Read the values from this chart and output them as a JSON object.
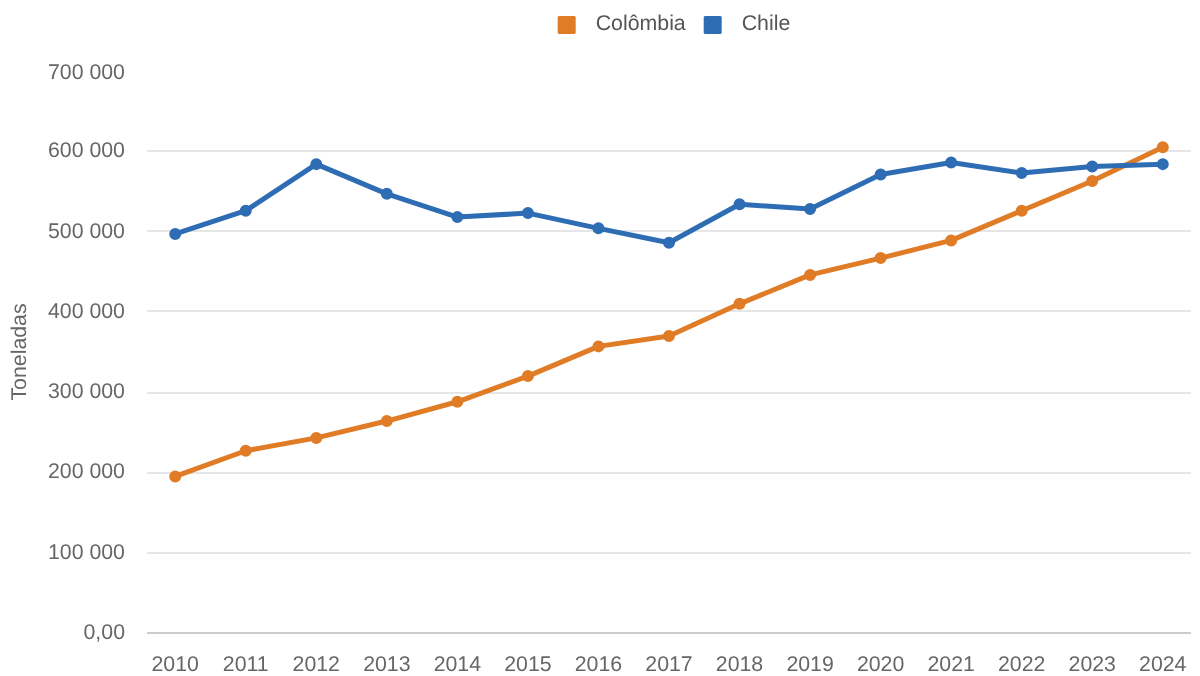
{
  "chart_data": {
    "type": "line",
    "ylabel": "Toneladas",
    "categories": [
      "2010",
      "2011",
      "2012",
      "2013",
      "2014",
      "2015",
      "2016",
      "2017",
      "2018",
      "2019",
      "2020",
      "2021",
      "2022",
      "2023",
      "2024"
    ],
    "series": [
      {
        "name": "Colômbia",
        "color": "#e07b26",
        "values": [
          195000,
          227000,
          243000,
          264000,
          288000,
          320000,
          357000,
          370000,
          410000,
          446000,
          467000,
          489000,
          526000,
          563000,
          605000
        ]
      },
      {
        "name": "Chile",
        "color": "#2e6db4",
        "values": [
          497000,
          526000,
          584000,
          547000,
          518000,
          523000,
          504000,
          486000,
          534000,
          528000,
          571000,
          586000,
          573000,
          581000,
          584000
        ]
      }
    ],
    "ylim": [
      0,
      700000
    ],
    "yticks": [
      {
        "value": 0,
        "label": "0,00"
      },
      {
        "value": 100000,
        "label": "100 000"
      },
      {
        "value": 200000,
        "label": "200 000"
      },
      {
        "value": 300000,
        "label": "300 000"
      },
      {
        "value": 400000,
        "label": "400 000"
      },
      {
        "value": 500000,
        "label": "500 000"
      },
      {
        "value": 600000,
        "label": "600 000"
      },
      {
        "value": 700000,
        "label": "700 000"
      }
    ],
    "grid": "y",
    "legend": "top",
    "marker": "circle",
    "line_style": "solid"
  }
}
